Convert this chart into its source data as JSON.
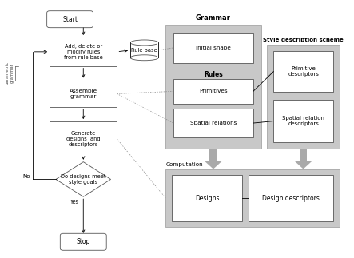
{
  "fig_width": 4.43,
  "fig_height": 3.23,
  "dpi": 100,
  "bg_color": "#ffffff",
  "gray_bg": "#c0c0c0",
  "box_color": "#ffffff",
  "box_edge": "#555555",
  "grammar_label": "Grammar",
  "computation_label": "Computation",
  "style_desc_label": "Style description scheme",
  "start_label": "Start",
  "stop_label": "Stop",
  "box1_label": "Add, delete or\nmodify rules\nfrom rule base",
  "box2_label": "Assemble\ngrammar",
  "box3_label": "Generate\ndesigns  and\ndescriptors",
  "diamond_label": "Do designs meet\nstyle goals",
  "no_label": "No",
  "yes_label": "Yes",
  "rule_base_label": "Rule base",
  "initial_shape_label": "Initial shape",
  "rules_label": "Rules",
  "primitives_label": "Primitives",
  "spatial_relations_label": "Spatial relations",
  "prim_desc_label": "Primitive\ndescriptors",
  "spatial_desc_label": "Spatial relation\ndescriptors",
  "designs_label": "Designs",
  "design_desc_label": "Design descriptors",
  "left_label": "parametric\ngrammar"
}
